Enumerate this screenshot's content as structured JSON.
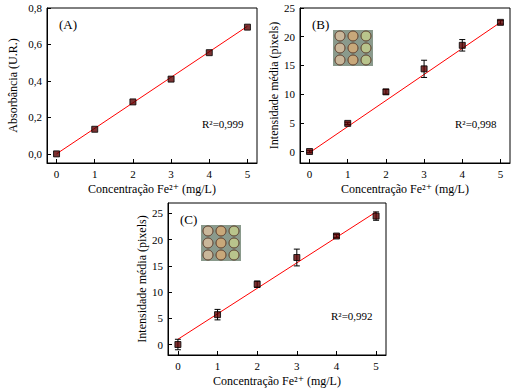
{
  "chart_data": [
    {
      "type": "scatter",
      "title": "(A)",
      "xlabel": "Concentração Fe²⁺ (mg/L)",
      "ylabel": "Absorbância (U.R.)",
      "annotation": "R²=0,999",
      "x": [
        0,
        1,
        2,
        3,
        4,
        5
      ],
      "values": [
        0.0,
        0.135,
        0.285,
        0.41,
        0.555,
        0.695
      ],
      "color": "#5a0000",
      "marker": "square",
      "fit_line": {
        "x": [
          0,
          5
        ],
        "values": [
          0.0,
          0.7
        ],
        "color": "#ff0000"
      },
      "xlim": [
        -0.25,
        5.25
      ],
      "xticks": [
        0,
        1,
        2,
        3,
        4,
        5
      ],
      "ylim": [
        -0.05,
        0.8
      ],
      "yticks": [
        {
          "value": 0.0,
          "label": "0,0"
        },
        {
          "value": 0.2,
          "label": "0,2"
        },
        {
          "value": 0.4,
          "label": "0,4"
        },
        {
          "value": 0.6,
          "label": "0,6"
        },
        {
          "value": 0.8,
          "label": "0,8"
        }
      ],
      "grid": false
    },
    {
      "type": "scatter",
      "title": "(B)",
      "xlabel": "Concentração Fe²⁺ (mg/L)",
      "ylabel": "Intensidade média (pixels)",
      "annotation": "R²=0,998",
      "x": [
        0,
        1,
        2,
        3,
        4,
        5
      ],
      "values": [
        0.0,
        4.9,
        10.4,
        14.4,
        18.5,
        22.5
      ],
      "errors": [
        0.2,
        0.2,
        0.4,
        1.5,
        1.0,
        0.3
      ],
      "color": "#5a0000",
      "marker": "square",
      "fit_line": {
        "x": [
          0,
          5
        ],
        "values": [
          -0.2,
          22.5
        ],
        "color": "#ff0000"
      },
      "xlim": [
        -0.25,
        5.25
      ],
      "xticks": [
        0,
        1,
        2,
        3,
        4,
        5
      ],
      "ylim": [
        -2,
        25
      ],
      "yticks": [
        0,
        5,
        10,
        15,
        20,
        25
      ],
      "grid": false
    },
    {
      "type": "scatter",
      "title": "(C)",
      "xlabel": "Concentração Fe²⁺ (mg/L)",
      "ylabel": "Intensidade média (pixels)",
      "annotation": "R²=0,992",
      "x": [
        0,
        1,
        2,
        3,
        4,
        5
      ],
      "values": [
        0.0,
        5.7,
        11.5,
        16.6,
        20.7,
        24.5
      ],
      "errors": [
        1.0,
        1.0,
        0.6,
        1.6,
        0.3,
        0.8
      ],
      "color": "#5a0000",
      "marker": "square",
      "fit_line": {
        "x": [
          0,
          5
        ],
        "values": [
          1.0,
          25.3
        ],
        "color": "#ff0000"
      },
      "xlim": [
        -0.25,
        5.25
      ],
      "xticks": [
        0,
        1,
        2,
        3,
        4,
        5
      ],
      "ylim": [
        -2,
        27
      ],
      "yticks": [
        0,
        5,
        10,
        15,
        20,
        25
      ],
      "grid": false
    }
  ]
}
